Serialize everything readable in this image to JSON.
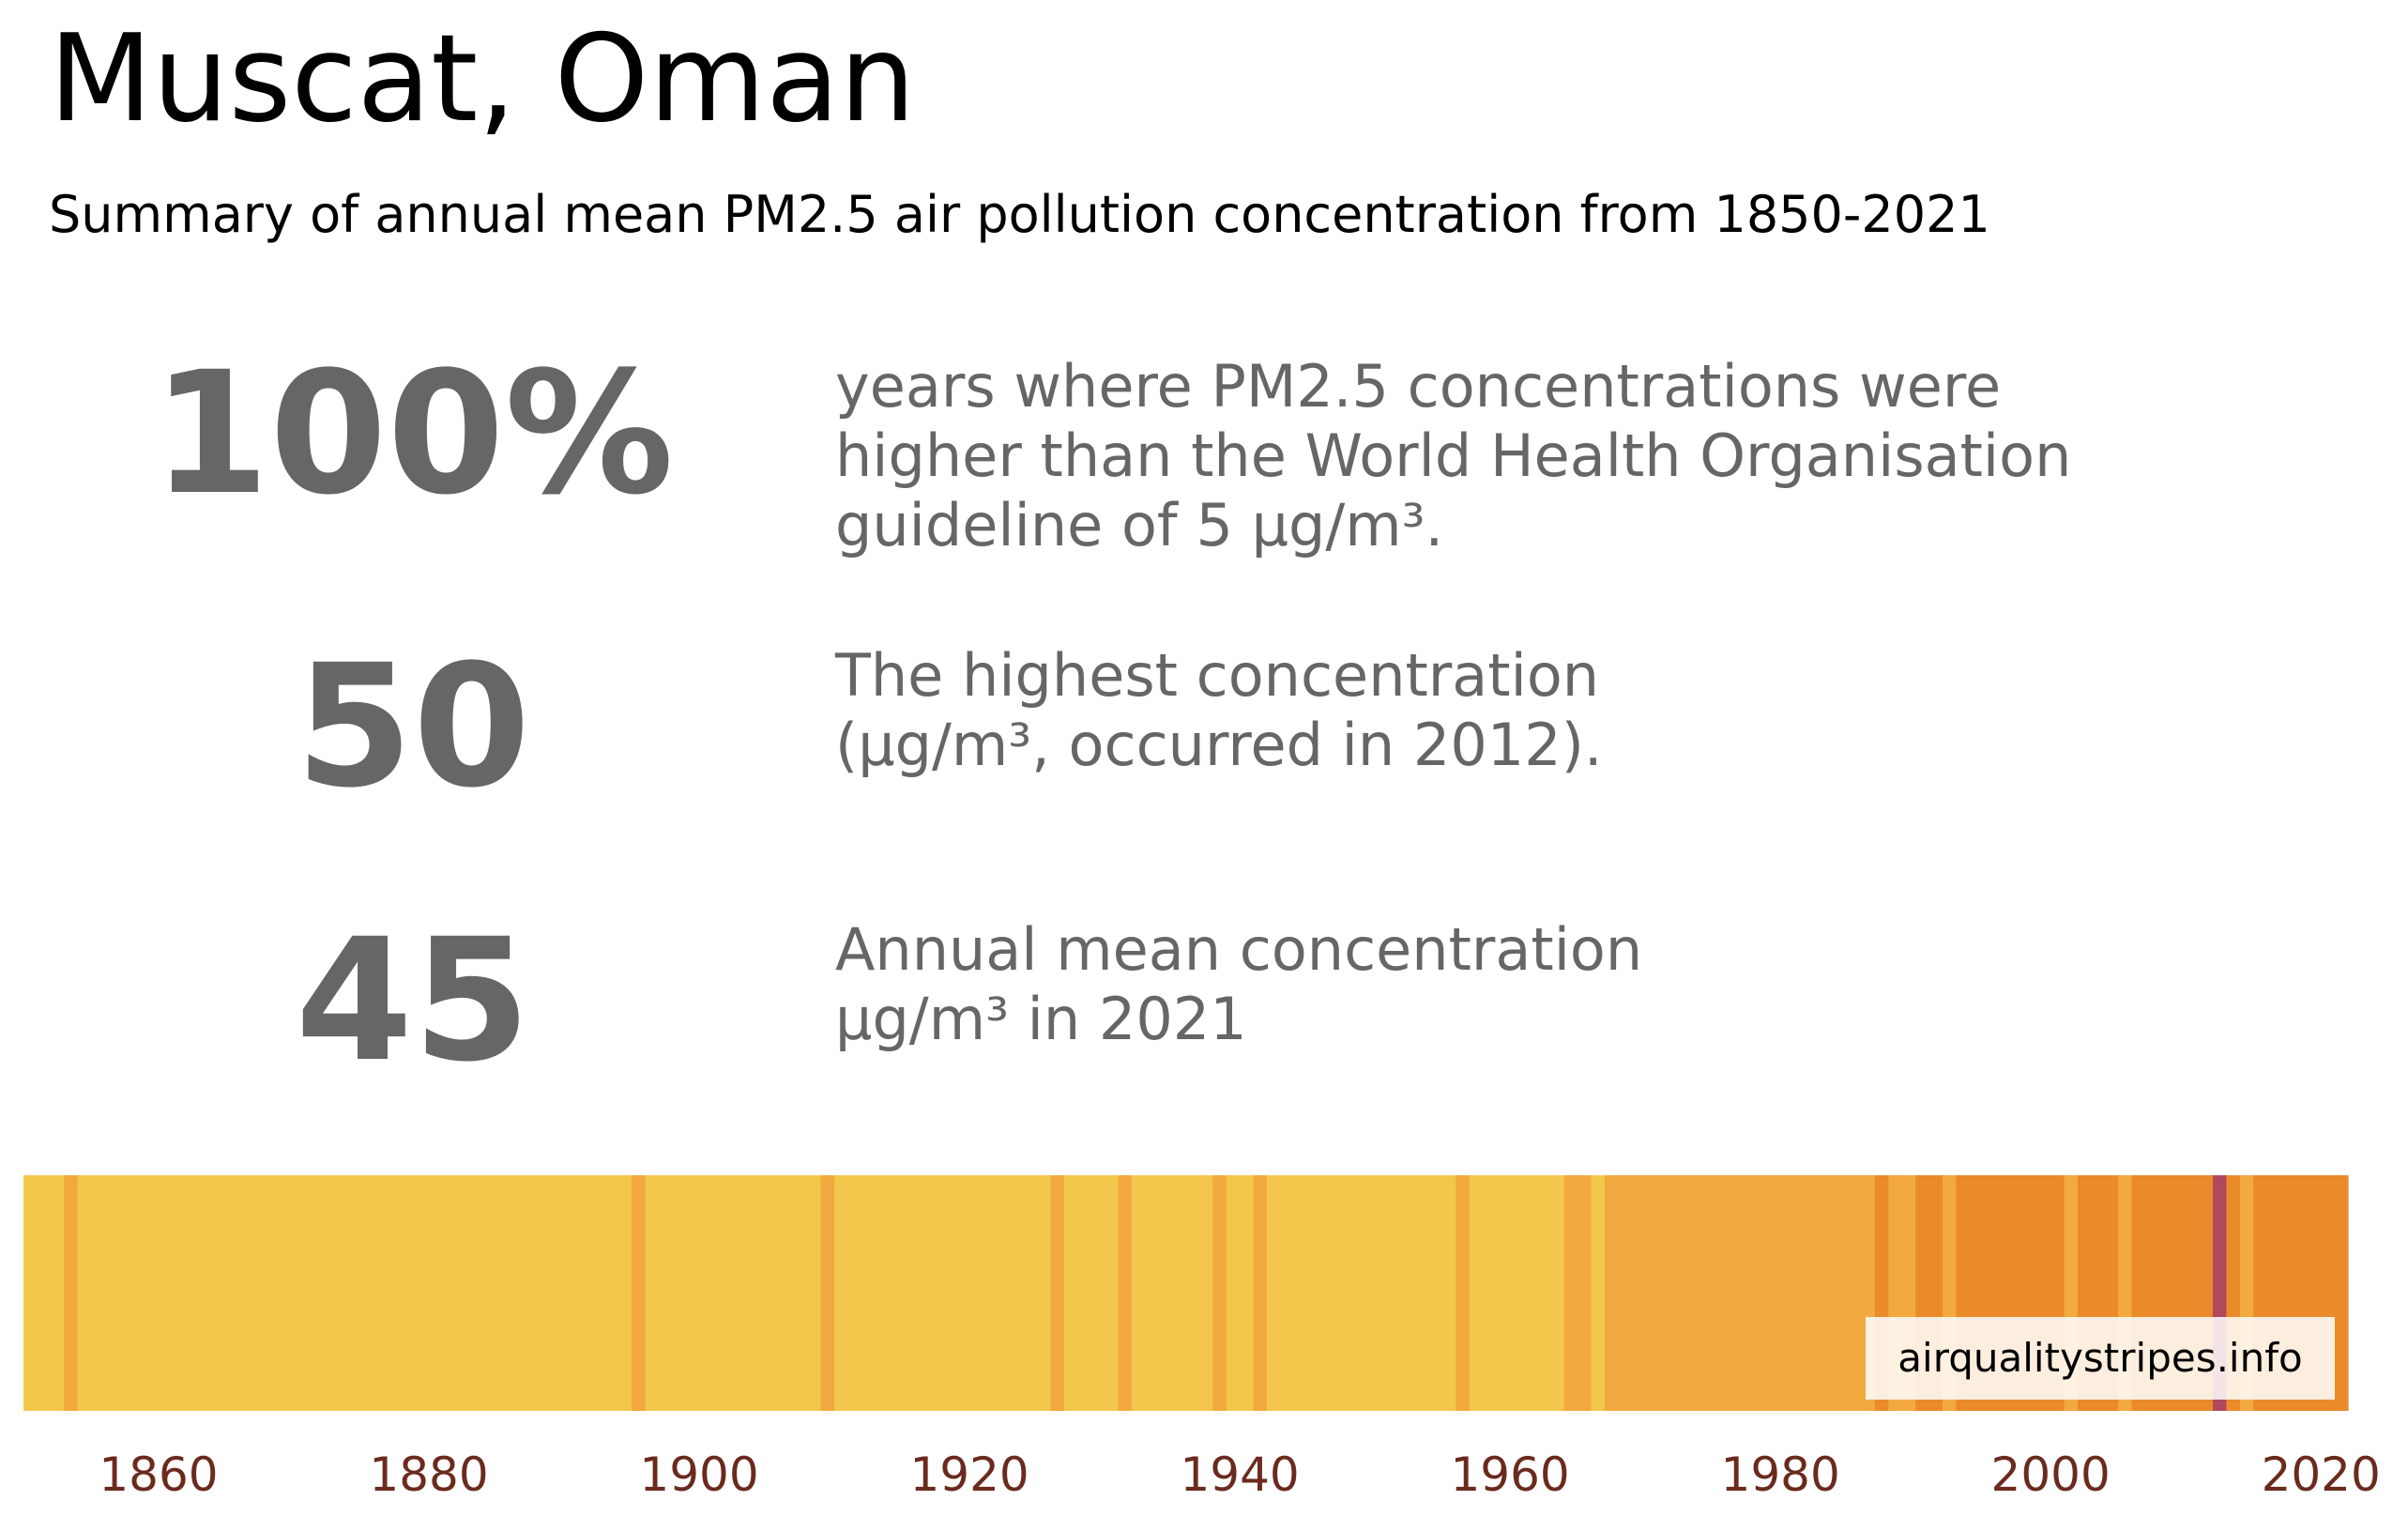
{
  "title": "Muscat, Oman",
  "subtitle": "Summary of annual mean PM2.5 air pollution concentration from 1850-2021",
  "stats": [
    {
      "value": "100%",
      "description": "years where PM2.5 concentrations were\nhigher than the World Health Organisation\nguideline of 5 µg/m³."
    },
    {
      "value": "50",
      "description": "The highest concentration\n(µg/m³, occurred in 2012)."
    },
    {
      "value": "45",
      "description": "Annual mean concentration\nµg/m³ in 2021"
    }
  ],
  "watermark": "airqualitystripes.info",
  "colors": {
    "low": "#f2c74c",
    "mid": "#f2a93f",
    "high": "#ea8a2a",
    "peak": "#b0495e",
    "tick_label": "#6b2a1e",
    "stat_text": "#666666"
  },
  "chart_data": {
    "type": "heatmap",
    "title": "",
    "xlabel": "",
    "ylabel": "",
    "x_range": [
      1850,
      2022
    ],
    "x_ticks": [
      "1860",
      "1880",
      "1900",
      "1920",
      "1940",
      "1960",
      "1980",
      "2000",
      "2020"
    ],
    "legend": "none",
    "grid": false,
    "description_of_encoding": "one vertical stripe per year, colored by annual mean PM2.5 level",
    "stripes": [
      {
        "start": 1850,
        "end": 1853,
        "level": "low"
      },
      {
        "start": 1853,
        "end": 1854,
        "level": "mid"
      },
      {
        "start": 1854,
        "end": 1895,
        "level": "low"
      },
      {
        "start": 1895,
        "end": 1896,
        "level": "mid"
      },
      {
        "start": 1896,
        "end": 1909,
        "level": "low"
      },
      {
        "start": 1909,
        "end": 1910,
        "level": "mid"
      },
      {
        "start": 1910,
        "end": 1926,
        "level": "low"
      },
      {
        "start": 1926,
        "end": 1927,
        "level": "mid"
      },
      {
        "start": 1927,
        "end": 1931,
        "level": "low"
      },
      {
        "start": 1931,
        "end": 1932,
        "level": "mid"
      },
      {
        "start": 1932,
        "end": 1938,
        "level": "low"
      },
      {
        "start": 1938,
        "end": 1939,
        "level": "mid"
      },
      {
        "start": 1939,
        "end": 1941,
        "level": "low"
      },
      {
        "start": 1941,
        "end": 1942,
        "level": "mid"
      },
      {
        "start": 1942,
        "end": 1956,
        "level": "low"
      },
      {
        "start": 1956,
        "end": 1957,
        "level": "mid"
      },
      {
        "start": 1957,
        "end": 1964,
        "level": "low"
      },
      {
        "start": 1964,
        "end": 1966,
        "level": "mid"
      },
      {
        "start": 1966,
        "end": 1967,
        "level": "low"
      },
      {
        "start": 1967,
        "end": 1987,
        "level": "mid"
      },
      {
        "start": 1987,
        "end": 1988,
        "level": "high"
      },
      {
        "start": 1988,
        "end": 1990,
        "level": "mid"
      },
      {
        "start": 1990,
        "end": 1992,
        "level": "high"
      },
      {
        "start": 1992,
        "end": 1993,
        "level": "mid"
      },
      {
        "start": 1993,
        "end": 2001,
        "level": "high"
      },
      {
        "start": 2001,
        "end": 2002,
        "level": "mid"
      },
      {
        "start": 2002,
        "end": 2005,
        "level": "high"
      },
      {
        "start": 2005,
        "end": 2006,
        "level": "mid"
      },
      {
        "start": 2006,
        "end": 2012,
        "level": "high"
      },
      {
        "start": 2012,
        "end": 2013,
        "level": "peak"
      },
      {
        "start": 2013,
        "end": 2014,
        "level": "high"
      },
      {
        "start": 2014,
        "end": 2015,
        "level": "mid"
      },
      {
        "start": 2015,
        "end": 2022,
        "level": "high"
      }
    ]
  }
}
